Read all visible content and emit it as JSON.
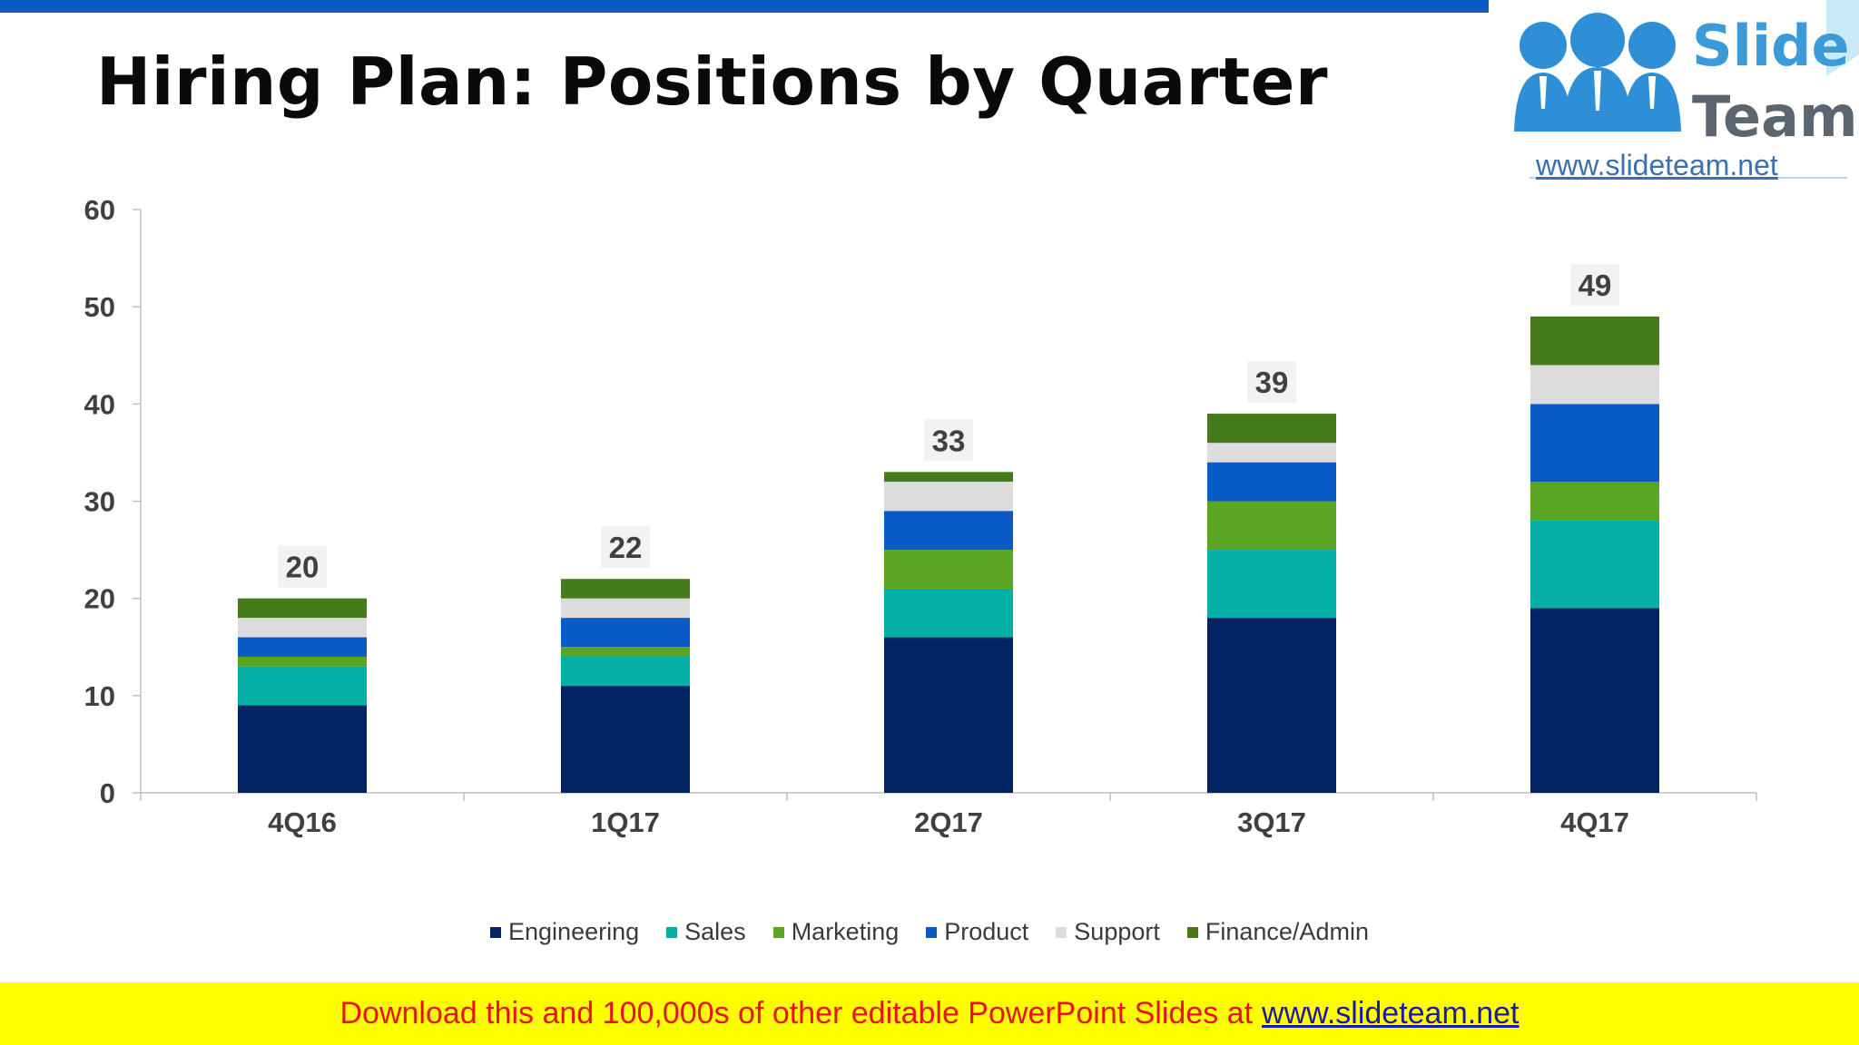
{
  "header": {
    "title": "Hiring Plan: Positions by Quarter"
  },
  "logo": {
    "word1": "Slide",
    "word2": "Team",
    "url": "www.slideteam.net"
  },
  "chart_data": {
    "type": "bar",
    "stacked": true,
    "title": "Hiring Plan: Positions by Quarter",
    "xlabel": "",
    "ylabel": "",
    "ylim": [
      0,
      60
    ],
    "yticks": [
      0,
      10,
      20,
      30,
      40,
      50,
      60
    ],
    "categories": [
      "4Q16",
      "1Q17",
      "2Q17",
      "3Q17",
      "4Q17"
    ],
    "series": [
      {
        "name": "Engineering",
        "color": "#022463",
        "values": [
          9,
          11,
          16,
          18,
          19
        ]
      },
      {
        "name": "Sales",
        "color": "#03b0a6",
        "values": [
          4,
          3,
          5,
          7,
          9
        ]
      },
      {
        "name": "Marketing",
        "color": "#5aa622",
        "values": [
          1,
          1,
          4,
          5,
          4
        ]
      },
      {
        "name": "Product",
        "color": "#0b5bc7",
        "values": [
          2,
          3,
          4,
          4,
          8
        ]
      },
      {
        "name": "Support",
        "color": "#dcdcdc",
        "values": [
          2,
          2,
          3,
          2,
          4
        ]
      },
      {
        "name": "Finance/Admin",
        "color": "#467b1c",
        "values": [
          2,
          2,
          1,
          3,
          5
        ]
      }
    ],
    "totals": [
      20,
      22,
      33,
      39,
      49
    ],
    "legend_position": "bottom"
  },
  "footer": {
    "text": "Download this and 100,000s of other editable PowerPoint Slides at",
    "link": "www.slideteam.net"
  }
}
